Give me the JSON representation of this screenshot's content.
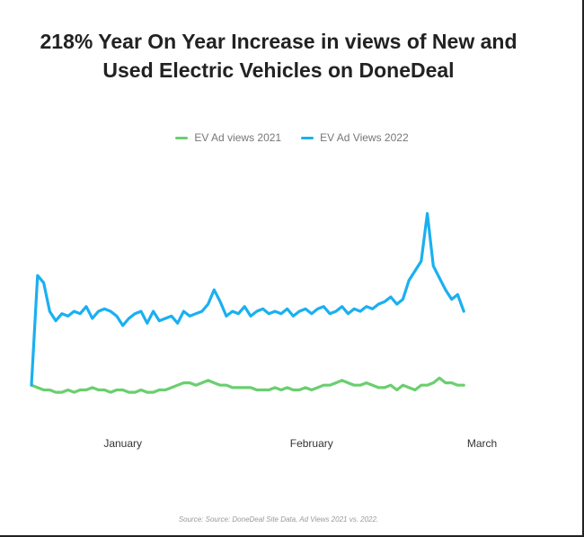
{
  "title_lines": [
    "218% Year On Year Increase in views of New and",
    "Used Electric Vehicles on DoneDeal"
  ],
  "source": "Source: Source: DoneDeal Site Data, Ad Views 2021 vs. 2022.",
  "colors": {
    "series_2021": "#6acf6e",
    "series_2022": "#1ab0f0"
  },
  "chart_data": {
    "type": "line",
    "title": "218% Year On Year Increase in views of New and Used Electric Vehicles on DoneDeal",
    "xlabel": "",
    "ylabel": "",
    "x_ticks": [
      "January",
      "February",
      "March"
    ],
    "x_tick_positions": [
      15,
      46,
      74
    ],
    "x_range": [
      0,
      90
    ],
    "ylim": [
      0,
      100
    ],
    "grid": false,
    "legend": "top-center",
    "series": [
      {
        "name": "EV Ad Views 2022",
        "color": "#1ab0f0",
        "points": [
          [
            0,
            12
          ],
          [
            1,
            58
          ],
          [
            2,
            55
          ],
          [
            3,
            43
          ],
          [
            4,
            39
          ],
          [
            5,
            42
          ],
          [
            6,
            41
          ],
          [
            7,
            43
          ],
          [
            8,
            42
          ],
          [
            9,
            45
          ],
          [
            10,
            40
          ],
          [
            11,
            43
          ],
          [
            12,
            44
          ],
          [
            13,
            43
          ],
          [
            14,
            41
          ],
          [
            15,
            37
          ],
          [
            16,
            40
          ],
          [
            17,
            42
          ],
          [
            18,
            43
          ],
          [
            19,
            38
          ],
          [
            20,
            43
          ],
          [
            21,
            39
          ],
          [
            22,
            40
          ],
          [
            23,
            41
          ],
          [
            24,
            38
          ],
          [
            25,
            43
          ],
          [
            26,
            41
          ],
          [
            27,
            42
          ],
          [
            28,
            43
          ],
          [
            29,
            46
          ],
          [
            30,
            52
          ],
          [
            31,
            47
          ],
          [
            32,
            41
          ],
          [
            33,
            43
          ],
          [
            34,
            42
          ],
          [
            35,
            45
          ],
          [
            36,
            41
          ],
          [
            37,
            43
          ],
          [
            38,
            44
          ],
          [
            39,
            42
          ],
          [
            40,
            43
          ],
          [
            41,
            42
          ],
          [
            42,
            44
          ],
          [
            43,
            41
          ],
          [
            44,
            43
          ],
          [
            45,
            44
          ],
          [
            46,
            42
          ],
          [
            47,
            44
          ],
          [
            48,
            45
          ],
          [
            49,
            42
          ],
          [
            50,
            43
          ],
          [
            51,
            45
          ],
          [
            52,
            42
          ],
          [
            53,
            44
          ],
          [
            54,
            43
          ],
          [
            55,
            45
          ],
          [
            56,
            44
          ],
          [
            57,
            46
          ],
          [
            58,
            47
          ],
          [
            59,
            49
          ],
          [
            60,
            46
          ],
          [
            61,
            48
          ],
          [
            62,
            56
          ],
          [
            63,
            60
          ],
          [
            64,
            64
          ],
          [
            65,
            84
          ],
          [
            66,
            62
          ],
          [
            67,
            57
          ],
          [
            68,
            52
          ],
          [
            69,
            48
          ],
          [
            70,
            50
          ],
          [
            71,
            43
          ]
        ]
      },
      {
        "name": "EV Ad views 2021",
        "color": "#6acf6e",
        "points": [
          [
            0,
            12
          ],
          [
            1,
            11
          ],
          [
            2,
            10
          ],
          [
            3,
            10
          ],
          [
            4,
            9
          ],
          [
            5,
            9
          ],
          [
            6,
            10
          ],
          [
            7,
            9
          ],
          [
            8,
            10
          ],
          [
            9,
            10
          ],
          [
            10,
            11
          ],
          [
            11,
            10
          ],
          [
            12,
            10
          ],
          [
            13,
            9
          ],
          [
            14,
            10
          ],
          [
            15,
            10
          ],
          [
            16,
            9
          ],
          [
            17,
            9
          ],
          [
            18,
            10
          ],
          [
            19,
            9
          ],
          [
            20,
            9
          ],
          [
            21,
            10
          ],
          [
            22,
            10
          ],
          [
            23,
            11
          ],
          [
            24,
            12
          ],
          [
            25,
            13
          ],
          [
            26,
            13
          ],
          [
            27,
            12
          ],
          [
            28,
            13
          ],
          [
            29,
            14
          ],
          [
            30,
            13
          ],
          [
            31,
            12
          ],
          [
            32,
            12
          ],
          [
            33,
            11
          ],
          [
            34,
            11
          ],
          [
            35,
            11
          ],
          [
            36,
            11
          ],
          [
            37,
            10
          ],
          [
            38,
            10
          ],
          [
            39,
            10
          ],
          [
            40,
            11
          ],
          [
            41,
            10
          ],
          [
            42,
            11
          ],
          [
            43,
            10
          ],
          [
            44,
            10
          ],
          [
            45,
            11
          ],
          [
            46,
            10
          ],
          [
            47,
            11
          ],
          [
            48,
            12
          ],
          [
            49,
            12
          ],
          [
            50,
            13
          ],
          [
            51,
            14
          ],
          [
            52,
            13
          ],
          [
            53,
            12
          ],
          [
            54,
            12
          ],
          [
            55,
            13
          ],
          [
            56,
            12
          ],
          [
            57,
            11
          ],
          [
            58,
            11
          ],
          [
            59,
            12
          ],
          [
            60,
            10
          ],
          [
            61,
            12
          ],
          [
            62,
            11
          ],
          [
            63,
            10
          ],
          [
            64,
            12
          ],
          [
            65,
            12
          ],
          [
            66,
            13
          ],
          [
            67,
            15
          ],
          [
            68,
            13
          ],
          [
            69,
            13
          ],
          [
            70,
            12
          ],
          [
            71,
            12
          ]
        ]
      }
    ]
  }
}
